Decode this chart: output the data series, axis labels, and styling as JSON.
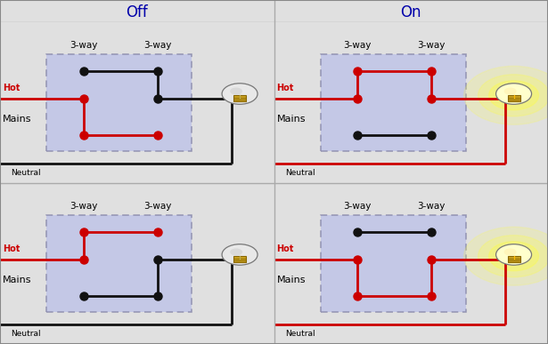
{
  "bg_color": "#e0e0e0",
  "panel_bg": "#eeeeee",
  "box_facecolor": "#c0c4e8",
  "box_edgecolor": "#8888aa",
  "wire_red": "#cc0000",
  "wire_black": "#111111",
  "header_bg": "#e8e8e8",
  "header_text_color": "#0000aa",
  "header_text_off": "Off",
  "header_text_on": "On",
  "divider_color": "#aaaaaa",
  "border_color": "#888888",
  "label_hot": "Hot",
  "label_mains": "Mains",
  "label_neutral": "Neutral",
  "label_3way": "3-way"
}
